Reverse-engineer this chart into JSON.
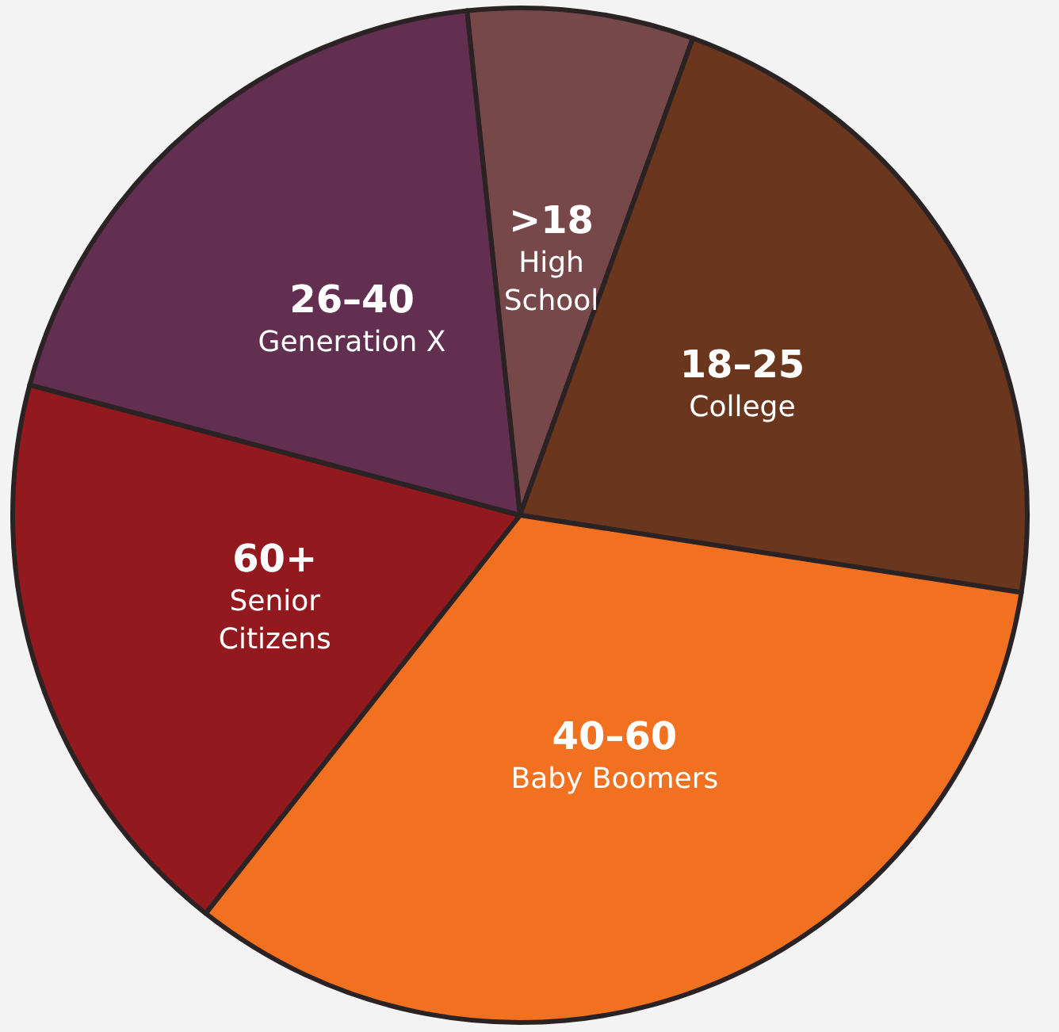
{
  "chart_data": {
    "type": "pie",
    "categories": [
      ">18\nHigh School",
      "18–25\nCollege",
      "40–60\nBaby Boomers",
      "60+\nSenior Citizens",
      "26–40\nGeneration X"
    ],
    "values": [
      7.2,
      21.9,
      33.2,
      18.5,
      19.2
    ],
    "colors": [
      "#77484a",
      "#6b361e",
      "#f27121",
      "#921a1f",
      "#632f50"
    ],
    "legend": false
  }
}
